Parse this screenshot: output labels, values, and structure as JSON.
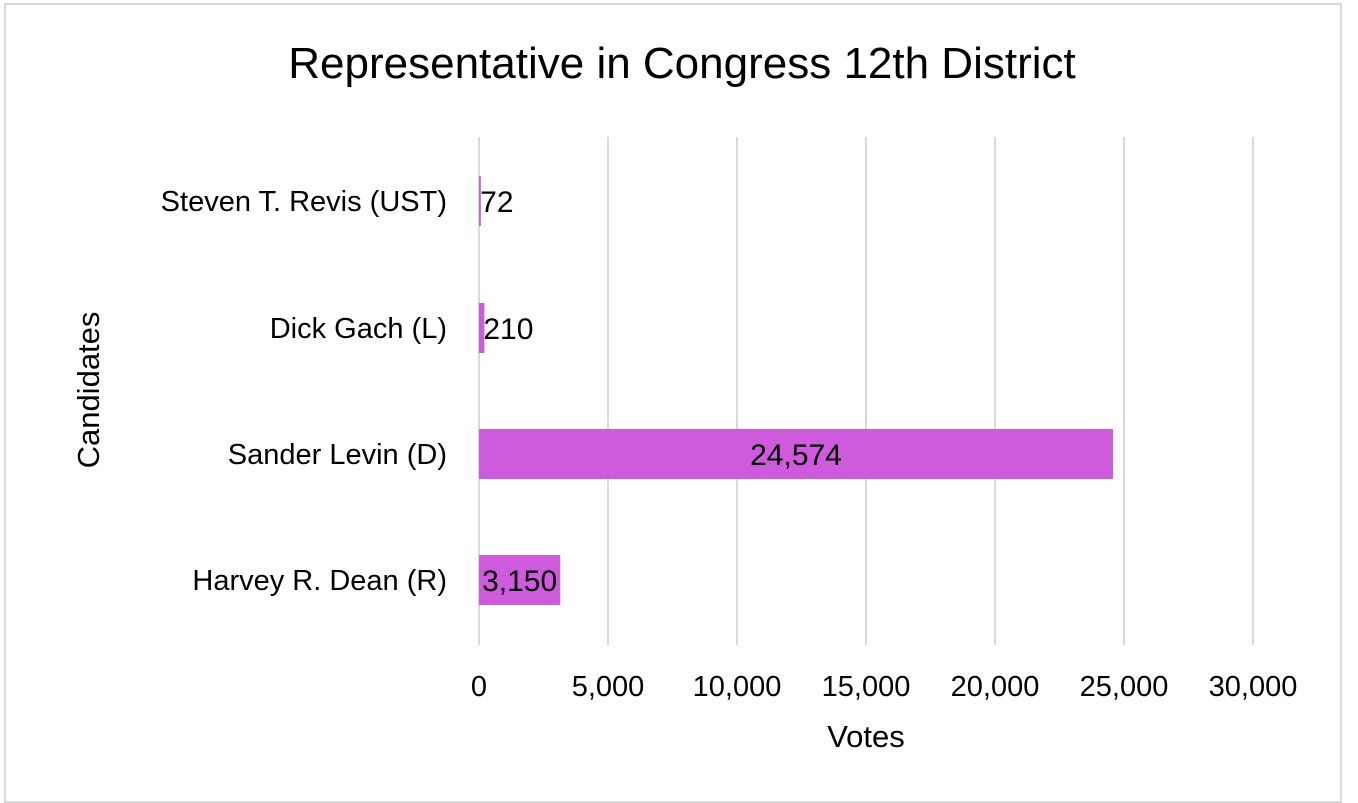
{
  "chart_data": {
    "type": "bar",
    "orientation": "horizontal",
    "title": "Representative in Congress 12th District",
    "xlabel": "Votes",
    "ylabel": "Candidates",
    "categories": [
      "Steven T. Revis (UST)",
      "Dick Gach (L)",
      "Sander Levin (D)",
      "Harvey R. Dean (R)"
    ],
    "values": [
      72,
      210,
      24574,
      3150
    ],
    "data_labels": [
      "72",
      "210",
      "24,574",
      "3,150"
    ],
    "xlim": [
      0,
      30000
    ],
    "xticks": [
      0,
      5000,
      10000,
      15000,
      20000,
      25000,
      30000
    ],
    "xtick_labels": [
      "0",
      "5,000",
      "10,000",
      "15,000",
      "20,000",
      "25,000",
      "30,000"
    ],
    "bar_color": "#cd5bdc",
    "gridlines": true,
    "legend": "none"
  }
}
